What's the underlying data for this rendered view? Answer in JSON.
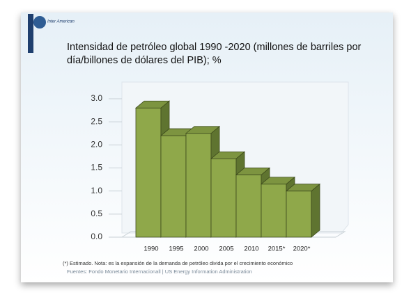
{
  "logo": "Inter American",
  "chart_data": {
    "type": "bar3d",
    "title": "Intensidad de petróleo global 1990 -2020 (millones de barriles por día/billones de dólares del PIB); %",
    "categories": [
      "1990",
      "1995",
      "2000",
      "2005",
      "2010",
      "2015*",
      "2020*"
    ],
    "values": [
      2.8,
      2.2,
      2.25,
      1.7,
      1.35,
      1.15,
      1.0
    ],
    "color": "#8fa84a",
    "ylim": [
      0,
      3
    ],
    "yticks": [
      {
        "value": 0,
        "label": "0.0"
      },
      0.5,
      {
        "value": 1,
        "label": "1.0"
      },
      1.5,
      {
        "value": 2,
        "label": "2.0"
      },
      2.5,
      {
        "value": 3,
        "label": "3.0"
      }
    ],
    "footnote": "(*) Estimado. Nota: es la expansión de la demanda de petróleo divida por el crecimiento económico",
    "source": "Fuentes: Fondo Monetario Internacionall | US Energy Information Administration"
  }
}
